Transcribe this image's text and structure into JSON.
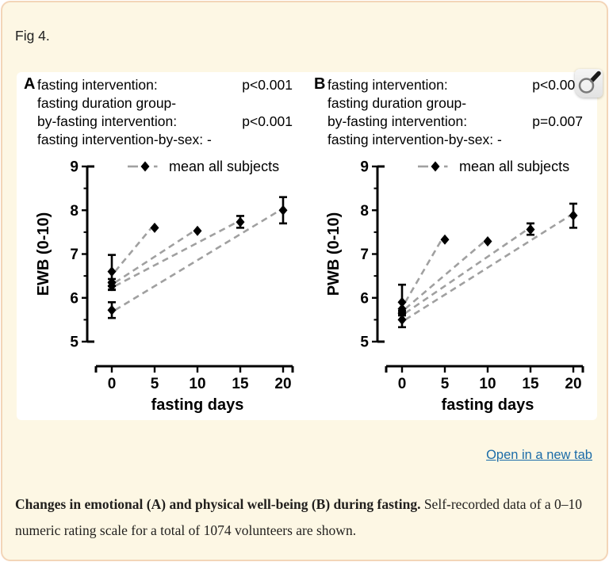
{
  "page": {
    "fig_label": "Fig 4.",
    "open_link": "Open in a new tab",
    "caption_bold": "Changes in emotional (A) and physical well-being (B) during fasting.",
    "caption_rest": " Self-recorded data of a 0–10 numeric rating scale for a total of 1074 volunteers are shown.",
    "colors": {
      "page_bg": "#fdf7e4",
      "page_border": "#f3d5b8",
      "figure_bg": "#ffffff",
      "figure_text": "#000000",
      "dash_gray": "#a0a0a0",
      "link_blue": "#1b6ca8"
    },
    "icons": {
      "zoom_cursor": "magnifying-glass-cursor"
    }
  },
  "figure": {
    "panels": [
      {
        "letter": "A",
        "annotations": [
          {
            "label": "fasting intervention:",
            "value": "p<0.001"
          },
          {
            "label": "fasting duration group-",
            "value": ""
          },
          {
            "label": "by-fasting intervention:",
            "value": "p<0.001"
          },
          {
            "label": "fasting intervention-by-sex: -",
            "value": ""
          }
        ]
      },
      {
        "letter": "B",
        "annotations": [
          {
            "label": "fasting intervention:",
            "value": "p<0.001"
          },
          {
            "label": "fasting duration group-",
            "value": ""
          },
          {
            "label": "by-fasting intervention:",
            "value": "p=0.007"
          },
          {
            "label": "fasting intervention-by-sex: -",
            "value": ""
          }
        ]
      }
    ]
  },
  "chart_data": [
    {
      "type": "scatter",
      "panel": "A",
      "ylabel": "EWB (0-10)",
      "xlabel": "fasting days",
      "xlim": [
        0,
        20
      ],
      "ylim": [
        5,
        9
      ],
      "xticks": [
        0,
        5,
        10,
        15,
        20
      ],
      "yticks": [
        5,
        6,
        7,
        8,
        9
      ],
      "yticks_minor": [
        5.5,
        6.5,
        7.5,
        8.5
      ],
      "legend": "mean all subjects",
      "legend_position": "top",
      "marker": "diamond",
      "line_style": "dashed-gray",
      "grid": false,
      "groups": [
        {
          "fasting_days": 5,
          "baseline": {
            "mean": 6.6,
            "ci": [
              6.18,
              6.98
            ]
          },
          "end": {
            "mean": 7.6,
            "ci": [
              7.6,
              7.6
            ]
          }
        },
        {
          "fasting_days": 10,
          "baseline": {
            "mean": 6.35,
            "ci": [
              6.27,
              6.43
            ]
          },
          "end": {
            "mean": 7.53,
            "ci": [
              7.53,
              7.53
            ]
          }
        },
        {
          "fasting_days": 15,
          "baseline": {
            "mean": 6.27,
            "ci": [
              6.19,
              6.35
            ]
          },
          "end": {
            "mean": 7.73,
            "ci": [
              7.6,
              7.87
            ]
          }
        },
        {
          "fasting_days": 20,
          "baseline": {
            "mean": 5.72,
            "ci": [
              5.54,
              5.9
            ]
          },
          "end": {
            "mean": 8.0,
            "ci": [
              7.7,
              8.3
            ]
          }
        }
      ]
    },
    {
      "type": "scatter",
      "panel": "B",
      "ylabel": "PWB (0-10)",
      "xlabel": "fasting days",
      "xlim": [
        0,
        20
      ],
      "ylim": [
        5,
        9
      ],
      "xticks": [
        0,
        5,
        10,
        15,
        20
      ],
      "yticks": [
        5,
        6,
        7,
        8,
        9
      ],
      "yticks_minor": [
        5.5,
        6.5,
        7.5,
        8.5
      ],
      "legend": "mean all subjects",
      "legend_position": "top",
      "marker": "diamond",
      "line_style": "dashed-gray",
      "grid": false,
      "groups": [
        {
          "fasting_days": 5,
          "baseline": {
            "mean": 5.9,
            "ci": [
              5.6,
              6.3
            ]
          },
          "end": {
            "mean": 7.33,
            "ci": [
              7.33,
              7.33
            ]
          }
        },
        {
          "fasting_days": 10,
          "baseline": {
            "mean": 5.75,
            "ci": [
              5.7,
              5.8
            ]
          },
          "end": {
            "mean": 7.29,
            "ci": [
              7.29,
              7.29
            ]
          }
        },
        {
          "fasting_days": 15,
          "baseline": {
            "mean": 5.65,
            "ci": [
              5.6,
              5.7
            ]
          },
          "end": {
            "mean": 7.56,
            "ci": [
              7.44,
              7.7
            ]
          }
        },
        {
          "fasting_days": 20,
          "baseline": {
            "mean": 5.5,
            "ci": [
              5.33,
              5.65
            ]
          },
          "end": {
            "mean": 7.88,
            "ci": [
              7.6,
              8.15
            ]
          }
        }
      ]
    }
  ]
}
